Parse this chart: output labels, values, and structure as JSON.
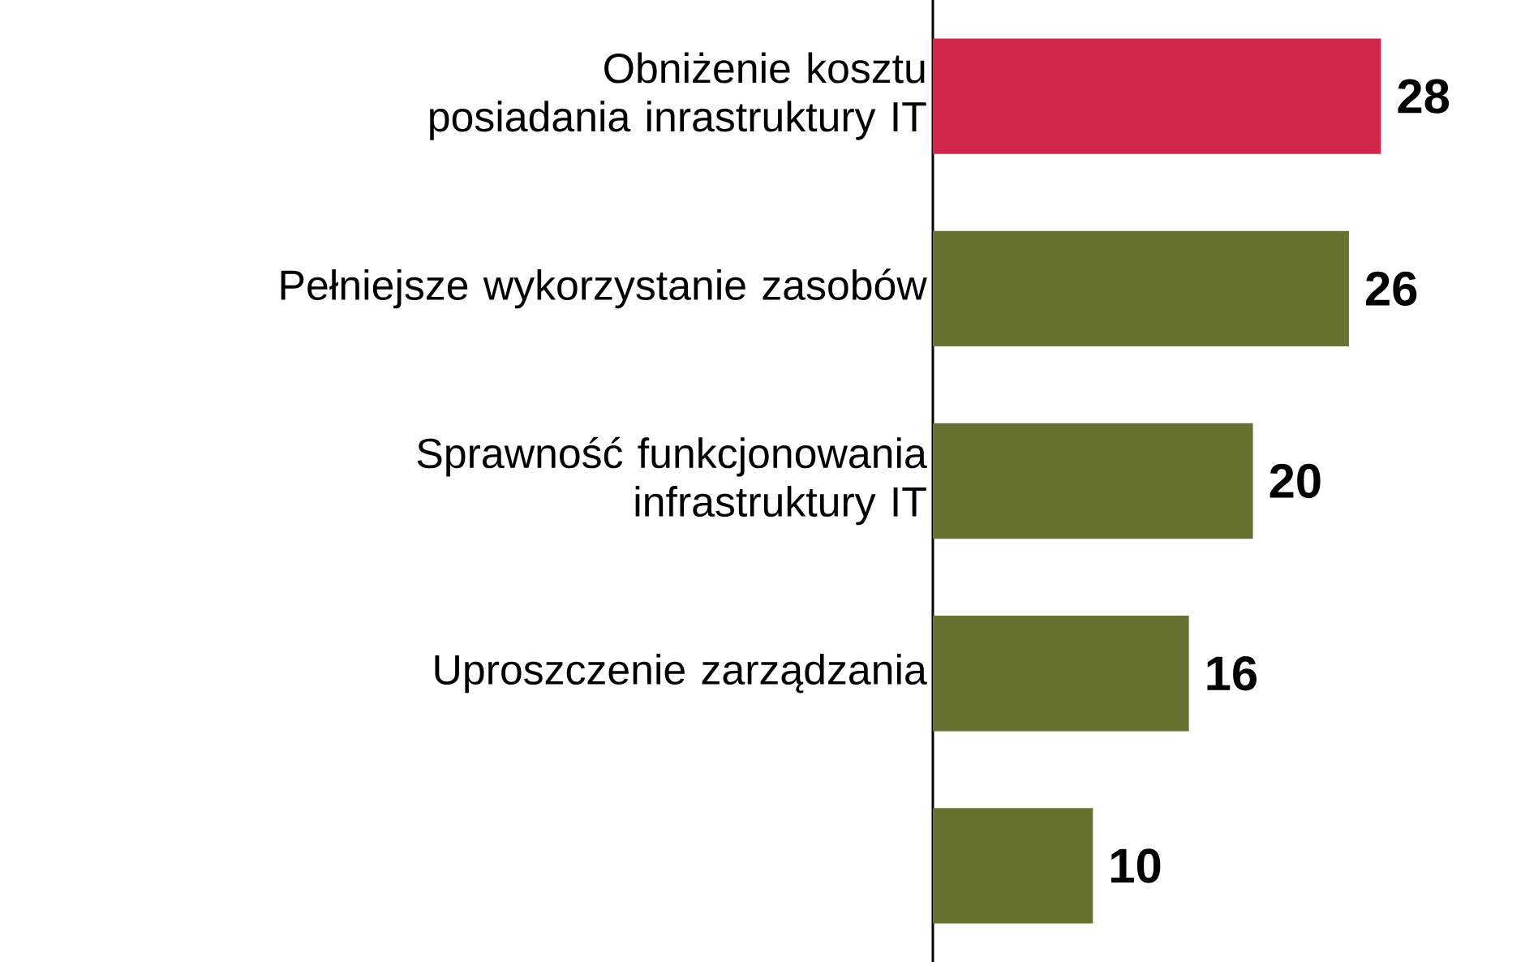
{
  "chart_data": {
    "type": "bar",
    "orientation": "horizontal",
    "categories": [
      "Obniżenie kosztu posiadania inrastruktury IT",
      "Pełniejsze wykorzystanie zasobów",
      "Sprawność funkcjonowania infrastruktury IT",
      "Uproszczenie zarządzania",
      null
    ],
    "values": [
      28,
      26,
      20,
      16,
      10
    ],
    "colors": [
      "#d0264a",
      "#66722f",
      "#66722f",
      "#66722f",
      "#66722f"
    ],
    "tick_labels": "y",
    "data_labels": true
  }
}
